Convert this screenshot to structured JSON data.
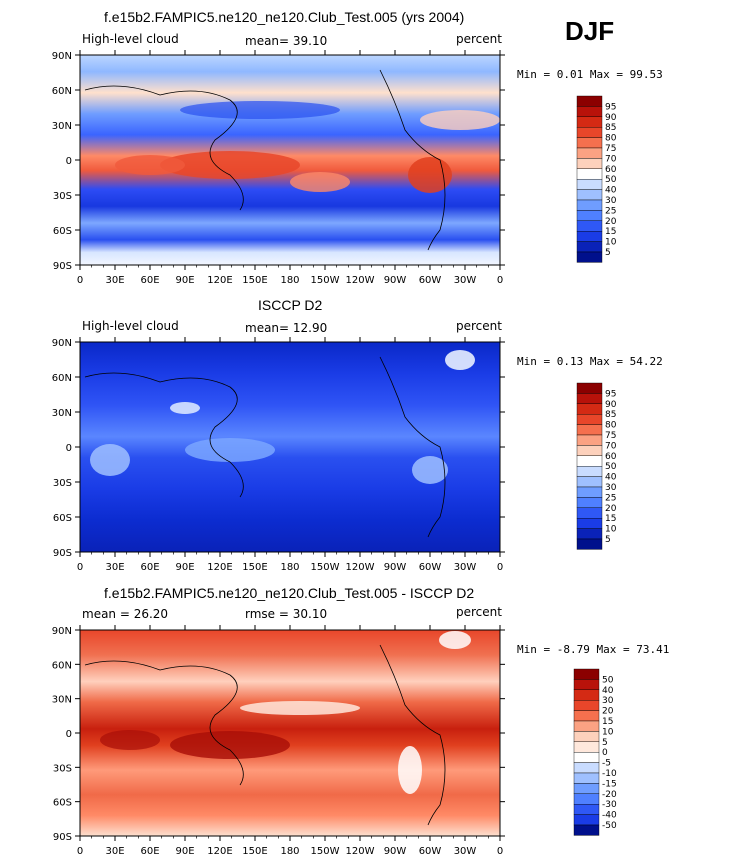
{
  "season": "DJF",
  "panels": [
    {
      "title": "f.e15b2.FAMPIC5.ne120_ne120.Club_Test.005 (yrs 2004)",
      "left_label": "High-level cloud",
      "mean_text": "mean=  39.10",
      "units": "percent",
      "minmax_text": "Min =   0.01 Max =  99.53",
      "colorbar": [
        "95",
        "90",
        "85",
        "80",
        "75",
        "70",
        "60",
        "50",
        "40",
        "30",
        "25",
        "20",
        "15",
        "10",
        "5"
      ]
    },
    {
      "title": "ISCCP D2",
      "left_label": "High-level cloud",
      "mean_text": "mean=  12.90",
      "units": "percent",
      "minmax_text": "Min =   0.13 Max =  54.22",
      "colorbar": [
        "95",
        "90",
        "85",
        "80",
        "75",
        "70",
        "60",
        "50",
        "40",
        "30",
        "25",
        "20",
        "15",
        "10",
        "5"
      ]
    },
    {
      "title": "f.e15b2.FAMPIC5.ne120_ne120.Club_Test.005 - ISCCP D2",
      "left_label": "mean =  26.20",
      "mean_text": "rmse =  30.10",
      "units": "percent",
      "minmax_text": "Min =  -8.79 Max =  73.41",
      "colorbar": [
        "50",
        "40",
        "30",
        "20",
        "15",
        "10",
        "5",
        "0",
        "-5",
        "-10",
        "-15",
        "-20",
        "-30",
        "-40",
        "-50"
      ]
    }
  ],
  "chart_data": {
    "type": "heatmap",
    "variable": "High-level cloud",
    "units": "percent",
    "x_tick_labels": [
      "0",
      "30E",
      "60E",
      "90E",
      "120E",
      "150E",
      "180",
      "150W",
      "120W",
      "90W",
      "60W",
      "30W",
      "0"
    ],
    "y_tick_labels": [
      "90N",
      "60N",
      "30N",
      "0",
      "30S",
      "60S",
      "90S"
    ],
    "xlim": [
      0,
      360
    ],
    "ylim": [
      -90,
      90
    ],
    "maps": [
      {
        "name": "f.e15b2.FAMPIC5.ne120_ne120.Club_Test.005 (yrs 2004)",
        "mean": 39.1,
        "min": 0.01,
        "max": 99.53,
        "levels": [
          5,
          10,
          15,
          20,
          25,
          30,
          40,
          50,
          60,
          70,
          75,
          80,
          85,
          90,
          95
        ]
      },
      {
        "name": "ISCCP D2",
        "mean": 12.9,
        "min": 0.13,
        "max": 54.22,
        "levels": [
          5,
          10,
          15,
          20,
          25,
          30,
          40,
          50,
          60,
          70,
          75,
          80,
          85,
          90,
          95
        ]
      },
      {
        "name": "f.e15b2.FAMPIC5.ne120_ne120.Club_Test.005 - ISCCP D2",
        "mean": 26.2,
        "rmse": 30.1,
        "min": -8.79,
        "max": 73.41,
        "levels": [
          -50,
          -40,
          -30,
          -20,
          -15,
          -10,
          -5,
          0,
          5,
          10,
          15,
          20,
          30,
          40,
          50
        ]
      }
    ]
  }
}
